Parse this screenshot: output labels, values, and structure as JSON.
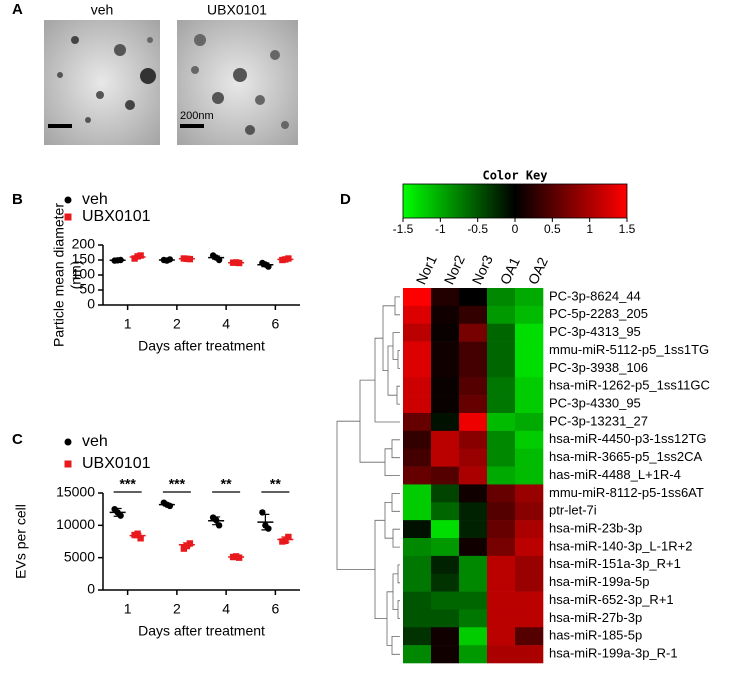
{
  "panel_labels": [
    "A",
    "B",
    "C",
    "D"
  ],
  "panel_a": {
    "images": [
      {
        "label": "veh",
        "color": "#000000"
      },
      {
        "label": "UBX0101",
        "color": "#e8191c"
      }
    ],
    "scale_bar": "200nm"
  },
  "chart_data": [
    {
      "type": "dotplot",
      "ylabel": [
        "Particle mean diameter",
        "(nm)"
      ],
      "xlabel": "Days after treatment",
      "categories": [
        "1",
        "2",
        "4",
        "6"
      ],
      "ylim": [
        0,
        200
      ],
      "yticks": [
        0,
        50,
        100,
        150,
        200
      ],
      "series": [
        {
          "name": "veh",
          "color": "#000000",
          "marker": "circle",
          "values": [
            [
              148,
              150,
              149
            ],
            [
              150,
              152,
              148
            ],
            [
              165,
              150,
              158
            ],
            [
              140,
              128,
              135
            ]
          ],
          "means": [
            149,
            150,
            158,
            134
          ],
          "errors": [
            1,
            1,
            5,
            6
          ]
        },
        {
          "name": "UBX0101",
          "color": "#e8191c",
          "marker": "square",
          "values": [
            [
              155,
              165,
              162
            ],
            [
              155,
              153,
              154
            ],
            [
              141,
              140,
              142
            ],
            [
              150,
              155,
              152
            ]
          ],
          "means": [
            160,
            154,
            141,
            152
          ],
          "errors": [
            4,
            1,
            1,
            3
          ]
        }
      ]
    },
    {
      "type": "dotplot",
      "ylabel": [
        "EVs per cell"
      ],
      "xlabel": "Days after treatment",
      "categories": [
        "1",
        "2",
        "4",
        "6"
      ],
      "ylim": [
        0,
        15000
      ],
      "yticks": [
        0,
        5000,
        10000,
        15000
      ],
      "significance": [
        "***",
        "***",
        "**",
        "**"
      ],
      "series": [
        {
          "name": "veh",
          "color": "#000000",
          "marker": "circle",
          "values": [
            [
              12500,
              11500,
              12000
            ],
            [
              13500,
              13000,
              13200
            ],
            [
              11200,
              10000,
              10800
            ],
            [
              12000,
              9500,
              10000
            ]
          ],
          "means": [
            12000,
            13200,
            10700,
            10500
          ],
          "errors": [
            600,
            200,
            600,
            1200
          ]
        },
        {
          "name": "UBX0101",
          "color": "#e8191c",
          "marker": "square",
          "values": [
            [
              8500,
              8000,
              8700
            ],
            [
              6400,
              7200,
              6800
            ],
            [
              5100,
              5000,
              5200
            ],
            [
              7500,
              8200,
              7600
            ]
          ],
          "means": [
            8400,
            7000,
            5100,
            7800
          ],
          "errors": [
            300,
            300,
            100,
            400
          ]
        }
      ]
    },
    {
      "type": "heatmap",
      "color_key": {
        "title": "Color Key",
        "ticks": [
          -1.5,
          -1,
          -0.5,
          0,
          0.5,
          1,
          1.5
        ]
      },
      "zlim": [
        -1.5,
        1.5
      ],
      "colors": [
        "#00ff00",
        "#000000",
        "#ff0000"
      ],
      "columns": [
        "Nor1",
        "Nor2",
        "Nor3",
        "OA1",
        "OA2"
      ],
      "rows": [
        "PC-3p-8624_44",
        "PC-5p-2283_205",
        "PC-3p-4313_95",
        "mmu-miR-5112-p5_1ss1TG",
        "PC-3p-3938_106",
        "hsa-miR-1262-p5_1ss11GC",
        "PC-3p-4330_95",
        "PC-3p-13231_27",
        "hsa-miR-4450-p3-1ss12TG",
        "hsa-miR-3665-p5_1ss2CA",
        "has-miR-4488_L+1R-4",
        "mmu-miR-8112-p5-1ss6AT",
        "ptr-let-7i",
        "hsa-miR-23b-3p",
        "hsa-miR-140-3p_L-1R+2",
        "hsa-miR-151a-3p_R+1",
        "hsa-miR-199a-5p",
        "hsa-miR-652-3p_R+1",
        "hsa-miR-27b-3p",
        "has-miR-185-5p",
        "hsa-miR-199a-3p_R-1"
      ],
      "values": [
        [
          1.5,
          0.2,
          0.0,
          -0.8,
          -1.0
        ],
        [
          1.3,
          0.1,
          0.3,
          -0.9,
          -1.1
        ],
        [
          1.1,
          0.05,
          0.7,
          -0.6,
          -1.3
        ],
        [
          1.3,
          0.1,
          0.4,
          -0.6,
          -1.3
        ],
        [
          1.3,
          0.1,
          0.4,
          -0.6,
          -1.3
        ],
        [
          1.2,
          0.05,
          0.5,
          -0.7,
          -1.2
        ],
        [
          1.2,
          0.05,
          0.6,
          -0.7,
          -1.2
        ],
        [
          0.6,
          -0.1,
          1.4,
          -1.1,
          -1.0
        ],
        [
          0.3,
          1.1,
          0.8,
          -0.8,
          -1.2
        ],
        [
          0.4,
          1.1,
          0.9,
          -0.8,
          -1.1
        ],
        [
          0.6,
          0.5,
          1.0,
          -1.0,
          -1.1
        ],
        [
          -1.2,
          -0.4,
          0.1,
          0.6,
          0.9
        ],
        [
          -1.2,
          -0.6,
          -0.2,
          0.5,
          0.8
        ],
        [
          -0.1,
          -1.3,
          -0.2,
          0.6,
          1.0
        ],
        [
          -0.8,
          -0.9,
          0.1,
          0.7,
          1.1
        ],
        [
          -0.7,
          -0.2,
          -0.8,
          1.1,
          0.9
        ],
        [
          -0.7,
          -0.3,
          -0.8,
          1.1,
          0.9
        ],
        [
          -0.5,
          -0.6,
          -0.6,
          1.1,
          1.1
        ],
        [
          -0.5,
          -0.5,
          -0.7,
          1.1,
          1.1
        ],
        [
          -0.3,
          0.1,
          -1.2,
          1.1,
          0.5
        ],
        [
          -0.8,
          0.1,
          -0.9,
          1.0,
          1.0
        ]
      ]
    }
  ]
}
